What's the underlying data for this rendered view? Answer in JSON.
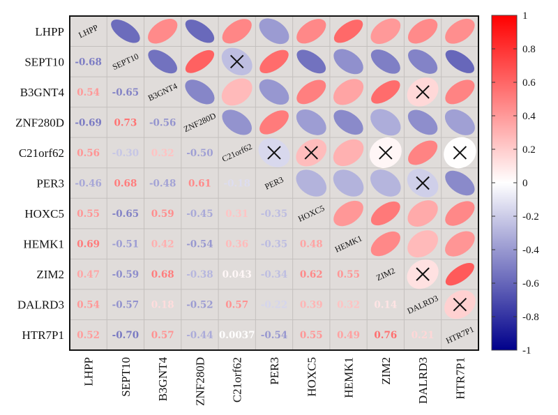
{
  "chart_data": {
    "type": "heatmap",
    "subtype": "correlation-matrix (lower: numbers, upper: ellipses, diagonal: names)",
    "variables": [
      "LHPP",
      "SEPT10",
      "B3GNT4",
      "ZNF280D",
      "C21orf62",
      "PER3",
      "HOXC5",
      "HEMK1",
      "ZIM2",
      "DALRD3",
      "HTR7P1"
    ],
    "matrix": [
      [
        1,
        -0.68,
        0.54,
        -0.69,
        0.56,
        -0.46,
        0.55,
        0.69,
        0.47,
        0.54,
        0.52
      ],
      [
        -0.68,
        1,
        -0.65,
        0.73,
        -0.3,
        0.68,
        -0.65,
        -0.51,
        -0.59,
        -0.57,
        -0.7
      ],
      [
        0.54,
        -0.65,
        1,
        -0.56,
        0.32,
        -0.48,
        0.59,
        0.42,
        0.68,
        0.18,
        0.57
      ],
      [
        -0.69,
        0.73,
        -0.56,
        1,
        -0.5,
        0.61,
        -0.45,
        -0.54,
        -0.38,
        -0.52,
        -0.44
      ],
      [
        0.56,
        -0.3,
        0.32,
        -0.5,
        1,
        -0.18,
        0.31,
        0.36,
        0.043,
        0.57,
        0.0037
      ],
      [
        -0.46,
        0.68,
        -0.48,
        0.61,
        -0.18,
        1,
        -0.35,
        -0.35,
        -0.34,
        -0.22,
        -0.54
      ],
      [
        0.55,
        -0.65,
        0.59,
        -0.45,
        0.31,
        -0.35,
        1,
        0.48,
        0.62,
        0.39,
        0.55
      ],
      [
        0.69,
        -0.51,
        0.42,
        -0.54,
        0.36,
        -0.35,
        0.48,
        1,
        0.55,
        0.32,
        0.49
      ],
      [
        0.47,
        -0.59,
        0.68,
        -0.38,
        0.043,
        -0.34,
        0.62,
        0.55,
        1,
        0.14,
        0.76
      ],
      [
        0.54,
        -0.57,
        0.18,
        -0.52,
        0.57,
        -0.22,
        0.39,
        0.32,
        0.14,
        1,
        0.21
      ],
      [
        0.52,
        -0.7,
        0.57,
        -0.44,
        0.0037,
        -0.54,
        0.55,
        0.49,
        0.76,
        0.21,
        1
      ]
    ],
    "labels": [
      [
        "",
        "",
        "",
        "",
        "",
        "",
        "",
        "",
        "",
        "",
        ""
      ],
      [
        "-0.68",
        "",
        "",
        "",
        "",
        "",
        "",
        "",
        "",
        "",
        ""
      ],
      [
        "0.54",
        "-0.65",
        "",
        "",
        "",
        "",
        "",
        "",
        "",
        "",
        ""
      ],
      [
        "-0.69",
        "0.73",
        "-0.56",
        "",
        "",
        "",
        "",
        "",
        "",
        "",
        ""
      ],
      [
        "0.56",
        "-0.30",
        "0.32",
        "-0.50",
        "",
        "",
        "",
        "",
        "",
        "",
        ""
      ],
      [
        "-0.46",
        "0.68",
        "-0.48",
        "0.61",
        "-0.18",
        "",
        "",
        "",
        "",
        "",
        ""
      ],
      [
        "0.55",
        "-0.65",
        "0.59",
        "-0.45",
        "0.31",
        "-0.35",
        "",
        "",
        "",
        "",
        ""
      ],
      [
        "0.69",
        "-0.51",
        "0.42",
        "-0.54",
        "0.36",
        "-0.35",
        "0.48",
        "",
        "",
        "",
        ""
      ],
      [
        "0.47",
        "-0.59",
        "0.68",
        "-0.38",
        "0.043",
        "-0.34",
        "0.62",
        "0.55",
        "",
        "",
        ""
      ],
      [
        "0.54",
        "-0.57",
        "0.18",
        "-0.52",
        "0.57",
        "-0.22",
        "0.39",
        "0.32",
        "0.14",
        "",
        ""
      ],
      [
        "0.52",
        "-0.70",
        "0.57",
        "-0.44",
        "0.0037",
        "-0.54",
        "0.55",
        "0.49",
        "0.76",
        "0.21",
        ""
      ]
    ],
    "insignificant_marks": [
      [
        "SEPT10",
        "C21orf62"
      ],
      [
        "B3GNT4",
        "DALRD3"
      ],
      [
        "C21orf62",
        "PER3"
      ],
      [
        "C21orf62",
        "HOXC5"
      ],
      [
        "C21orf62",
        "ZIM2"
      ],
      [
        "C21orf62",
        "HTR7P1"
      ],
      [
        "PER3",
        "DALRD3"
      ],
      [
        "ZIM2",
        "DALRD3"
      ],
      [
        "DALRD3",
        "HTR7P1"
      ]
    ],
    "colorbar": {
      "range": [
        -1,
        1
      ],
      "ticks": [
        "1",
        "0.8",
        "0.6",
        "0.4",
        "0.2",
        "0",
        "-0.2",
        "-0.4",
        "-0.6",
        "-0.8",
        "-1"
      ],
      "colors": {
        "low": "#00008b",
        "mid": "#ffffff",
        "high": "#ff0000"
      },
      "placement": "right"
    },
    "background": "#e0dcda",
    "grid": true,
    "title": "",
    "xlabel": "",
    "ylabel": ""
  }
}
